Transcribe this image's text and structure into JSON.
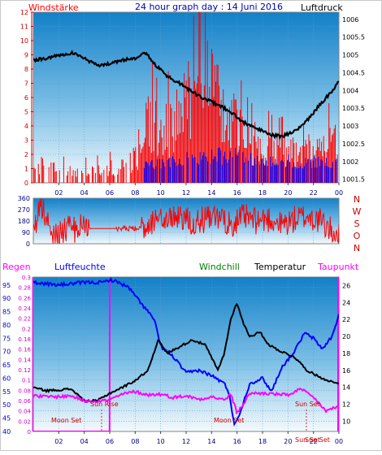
{
  "header": {
    "left_label": "Windstärke",
    "title": "24 hour graph day : 14 Juni 2016",
    "right_label": "Luftdruck"
  },
  "legend2": {
    "regen": "Regen",
    "luftfeuchte": "Luftfeuchte",
    "windchill": "Windchill",
    "temperatur": "Temperatur",
    "taupunkt": "Taupunkt"
  },
  "colors": {
    "wind": "#ff0000",
    "gust": "#0000ff",
    "pressure": "#000000",
    "humidity": "#0000ff",
    "temperature": "#000000",
    "dewpoint": "#ff00ff",
    "rain": "#ff00ff",
    "windchill": "#008000",
    "sky_top": "#1280c8",
    "sky_bottom": "#f2f8fc"
  },
  "chart_data": [
    {
      "type": "bar",
      "title": "24 hour graph day : 14 Juni 2016",
      "x_ticks": [
        "02",
        "04",
        "06",
        "08",
        "10",
        "12",
        "14",
        "16",
        "18",
        "20",
        "22",
        "00"
      ],
      "left_axis": {
        "label": "Windstärke",
        "ticks": [
          "0",
          "1",
          "2",
          "3",
          "4",
          "5",
          "6",
          "7",
          "8",
          "9",
          "10",
          "11",
          "12"
        ],
        "range": [
          0,
          12
        ]
      },
      "right_axis": {
        "label": "Luftdruck",
        "ticks": [
          "1001.5",
          "1002",
          "1002.5",
          "1003",
          "1003.5",
          "1004",
          "1004.5",
          "1005",
          "1005.5",
          "1006"
        ],
        "range": [
          1001.4,
          1006.2
        ]
      },
      "series": [
        {
          "name": "Windstärke",
          "color": "#ff0000",
          "x": [
            1,
            3,
            5,
            7,
            8.5,
            9,
            10,
            11,
            12,
            13,
            14,
            15,
            16,
            17,
            18,
            19,
            20,
            21,
            22,
            23,
            24
          ],
          "values": [
            1.5,
            1.0,
            1.2,
            1.5,
            2.5,
            6.0,
            4.0,
            5.5,
            6.5,
            11.5,
            8.0,
            5.5,
            5.0,
            3.5,
            3.5,
            2.8,
            3.0,
            2.5,
            3.0,
            3.5,
            3.5
          ]
        },
        {
          "name": "gust",
          "color": "#0000ff",
          "x": [
            8.5,
            10,
            12,
            14,
            16,
            18,
            20,
            22,
            24
          ],
          "values": [
            1.5,
            1.8,
            2.2,
            2.5,
            2.5,
            2.2,
            2.0,
            2.0,
            2.0
          ]
        },
        {
          "name": "Luftdruck",
          "color": "#000000",
          "x": [
            0,
            1,
            2,
            3,
            4,
            5,
            6,
            7,
            8,
            8.7,
            9.5,
            10.5,
            11.5,
            12.5,
            13.5,
            14.5,
            15.5,
            16.5,
            17.5,
            18.5,
            19.5,
            20.5,
            21.5,
            22.5,
            23.5,
            24
          ],
          "values": [
            1004.85,
            1004.9,
            1005.0,
            1005.05,
            1004.9,
            1004.7,
            1004.75,
            1004.85,
            1004.9,
            1005.1,
            1004.75,
            1004.4,
            1004.2,
            1003.95,
            1003.75,
            1003.6,
            1003.4,
            1003.1,
            1002.95,
            1002.75,
            1002.7,
            1002.85,
            1003.15,
            1003.6,
            1004.0,
            1004.25
          ]
        }
      ]
    },
    {
      "type": "line",
      "right_labels": [
        "N",
        "W",
        "S",
        "O",
        "N"
      ],
      "left_axis": {
        "ticks": [
          "0",
          "90",
          "180",
          "270",
          "360"
        ],
        "range": [
          0,
          360
        ]
      },
      "series": [
        {
          "name": "wind direction",
          "color": "#ff0000",
          "x": [
            0,
            0.6,
            1.5,
            2.5,
            3.5,
            4.5,
            5.5,
            6.5,
            7.5,
            8.5,
            9.5,
            10.5,
            11.5,
            12.5,
            13.5,
            14.5,
            15.5,
            16.5,
            17.5,
            18.5,
            19.5,
            20.5,
            21.5,
            22.5,
            23.5,
            24
          ],
          "values": [
            90,
            300,
            80,
            110,
            120,
            180,
            260,
            170,
            240,
            120,
            200,
            180,
            230,
            170,
            190,
            200,
            160,
            210,
            180,
            200,
            150,
            190,
            220,
            180,
            90,
            90
          ]
        }
      ]
    },
    {
      "type": "line",
      "x_ticks": [
        "02",
        "04",
        "06",
        "08",
        "10",
        "12",
        "14",
        "16",
        "18",
        "20",
        "22",
        "00"
      ],
      "left_axis_rain": {
        "label": "Regen",
        "ticks": [
          "0",
          "0.02",
          "0.04",
          "0.06",
          "0.08",
          "0.1",
          "0.12",
          "0.14",
          "0.16",
          "0.18",
          "0.2",
          "0.22",
          "0.24",
          "0.26",
          "0.28",
          "0.3"
        ],
        "range": [
          0,
          0.3
        ]
      },
      "left_axis_humidity": {
        "label": "Luftfeuchte",
        "ticks": [
          "40",
          "45",
          "50",
          "55",
          "60",
          "65",
          "70",
          "75",
          "80",
          "85",
          "90",
          "95"
        ],
        "range": [
          40,
          98
        ]
      },
      "right_axis": {
        "label": "Temperatur",
        "ticks": [
          "10",
          "12",
          "14",
          "16",
          "18",
          "20",
          "22",
          "24",
          "26"
        ],
        "range": [
          8.8,
          27
        ]
      },
      "annotations": [
        "Sun Rise",
        "Sun Set",
        "Moon Set",
        "Moon Set",
        "Sun Set",
        "Sun Set"
      ],
      "series": [
        {
          "name": "Luftfeuchte",
          "color": "#0000ff",
          "x": [
            0,
            2,
            4,
            5.5,
            6,
            6.7,
            7.5,
            8.5,
            9.5,
            10,
            11,
            12,
            13,
            14,
            15,
            15.4,
            15.8,
            16.3,
            17,
            18,
            18.7,
            19.5,
            20.5,
            21.3,
            22,
            22.7,
            23.5,
            24
          ],
          "values": [
            96,
            95,
            96,
            96,
            97,
            96,
            94,
            88,
            82,
            72,
            68,
            62,
            63,
            61,
            58,
            54,
            42,
            48,
            58,
            60,
            55,
            64,
            70,
            77,
            75,
            71,
            76,
            84
          ]
        },
        {
          "name": "Temperatur",
          "color": "#000000",
          "x": [
            0,
            1,
            2,
            3,
            4,
            5,
            6,
            7,
            8,
            9,
            9.8,
            10.5,
            11.5,
            12.5,
            13.5,
            14.5,
            15,
            15.5,
            16,
            16.5,
            17,
            17.8,
            18.5,
            19.5,
            20.5,
            21.5,
            22.5,
            23.5,
            24
          ],
          "values": [
            14.0,
            13.6,
            13.7,
            13.8,
            12.4,
            12.4,
            13.3,
            14.0,
            14.8,
            16.0,
            19.6,
            18.0,
            18.8,
            19.6,
            19.0,
            16.0,
            18.0,
            22.0,
            24.0,
            21.5,
            20.0,
            20.5,
            19.0,
            18.2,
            17.6,
            16.0,
            15.2,
            14.6,
            14.5
          ]
        },
        {
          "name": "Taupunkt",
          "color": "#ff00ff",
          "x": [
            0,
            1,
            2,
            3,
            4,
            5,
            6,
            7,
            8,
            9,
            10,
            11,
            12,
            13,
            14,
            15,
            15.5,
            16,
            16.5,
            17,
            18,
            19,
            20,
            21,
            22,
            23,
            24
          ],
          "values": [
            13.0,
            12.9,
            12.9,
            13.0,
            12.4,
            12.4,
            12.5,
            13.2,
            13.5,
            13.1,
            13.2,
            12.8,
            13.0,
            12.6,
            12.9,
            12.5,
            13.2,
            11.0,
            12.0,
            13.3,
            13.3,
            13.2,
            13.1,
            13.8,
            12.8,
            11.2,
            11.8
          ]
        },
        {
          "name": "Regen",
          "color": "#ff00ff",
          "x": [
            0,
            5.99,
            6.0,
            24
          ],
          "values": [
            0,
            0,
            0.3,
            0.3
          ]
        }
      ]
    }
  ]
}
